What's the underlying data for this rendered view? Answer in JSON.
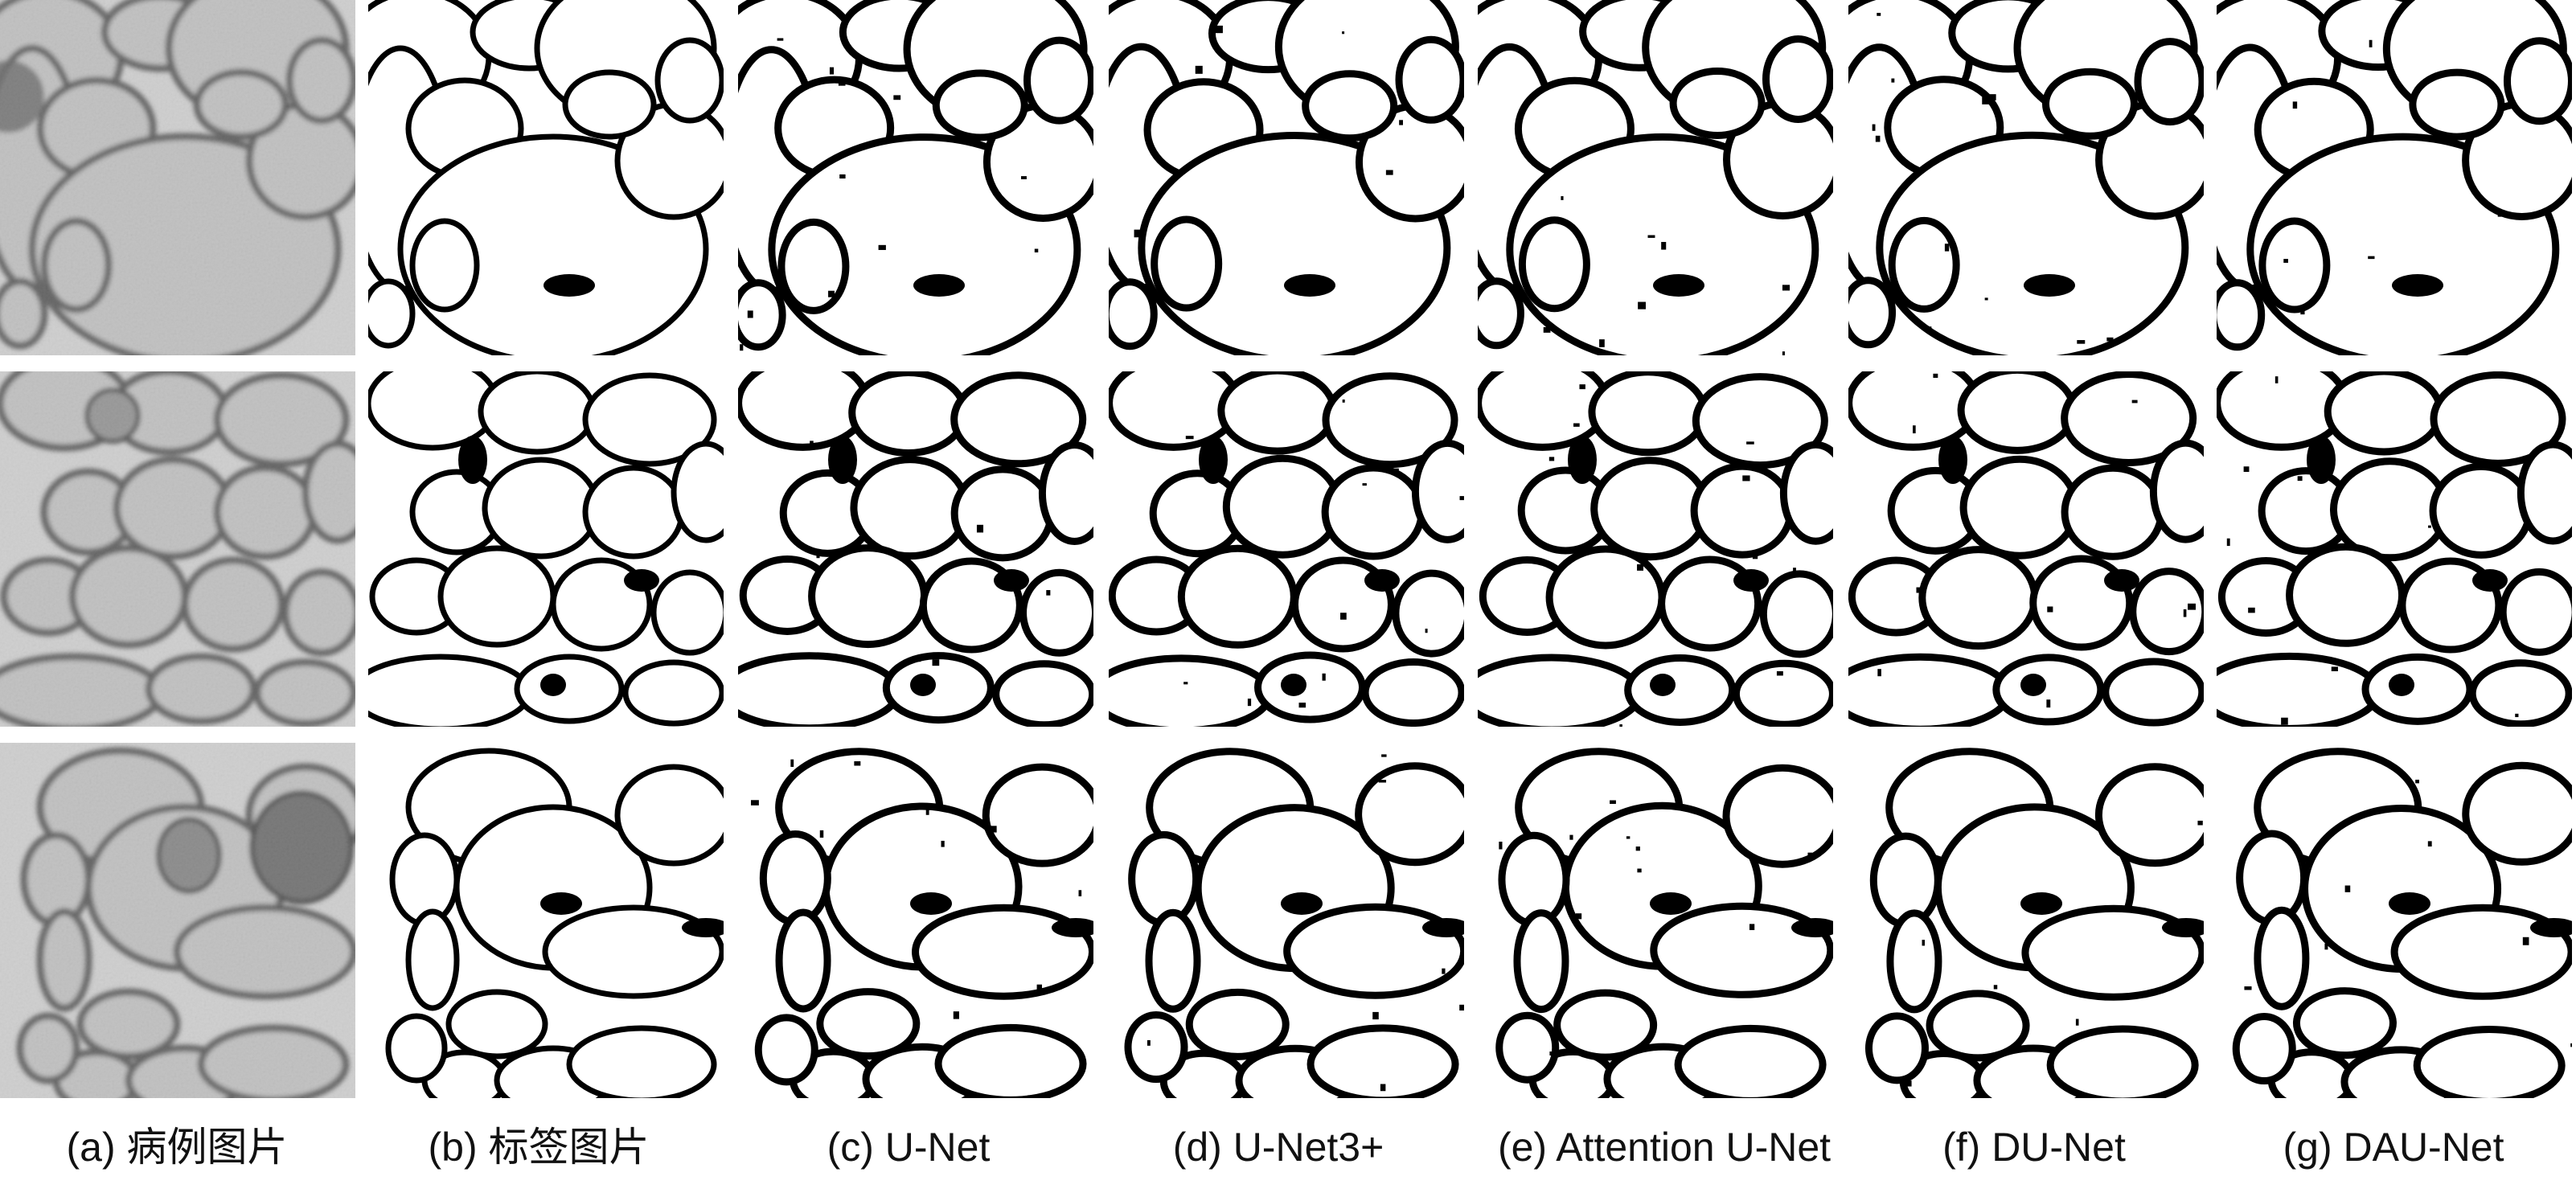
{
  "figure": {
    "columns": [
      {
        "id": "a",
        "caption": "(a) 病例图片",
        "kind": "em-image"
      },
      {
        "id": "b",
        "caption": "(b) 标签图片",
        "kind": "label-mask"
      },
      {
        "id": "c",
        "caption": "(c) U-Net",
        "kind": "prediction"
      },
      {
        "id": "d",
        "caption": "(d) U-Net3+",
        "kind": "prediction"
      },
      {
        "id": "e",
        "caption": "(e) Attention U-Net",
        "kind": "prediction"
      },
      {
        "id": "f",
        "caption": "(f) DU-Net",
        "kind": "prediction"
      },
      {
        "id": "g",
        "caption": "(g) DAU-Net",
        "kind": "prediction"
      }
    ],
    "rows": [
      {
        "id": "row-1"
      },
      {
        "id": "row-2"
      },
      {
        "id": "row-3"
      }
    ],
    "colors": {
      "background": "#ffffff",
      "mask_foreground": "#ffffff",
      "mask_membrane": "#000000",
      "em_dark": "#4a4a4a",
      "em_light": "#cfcfcf",
      "text": "#111111"
    }
  }
}
